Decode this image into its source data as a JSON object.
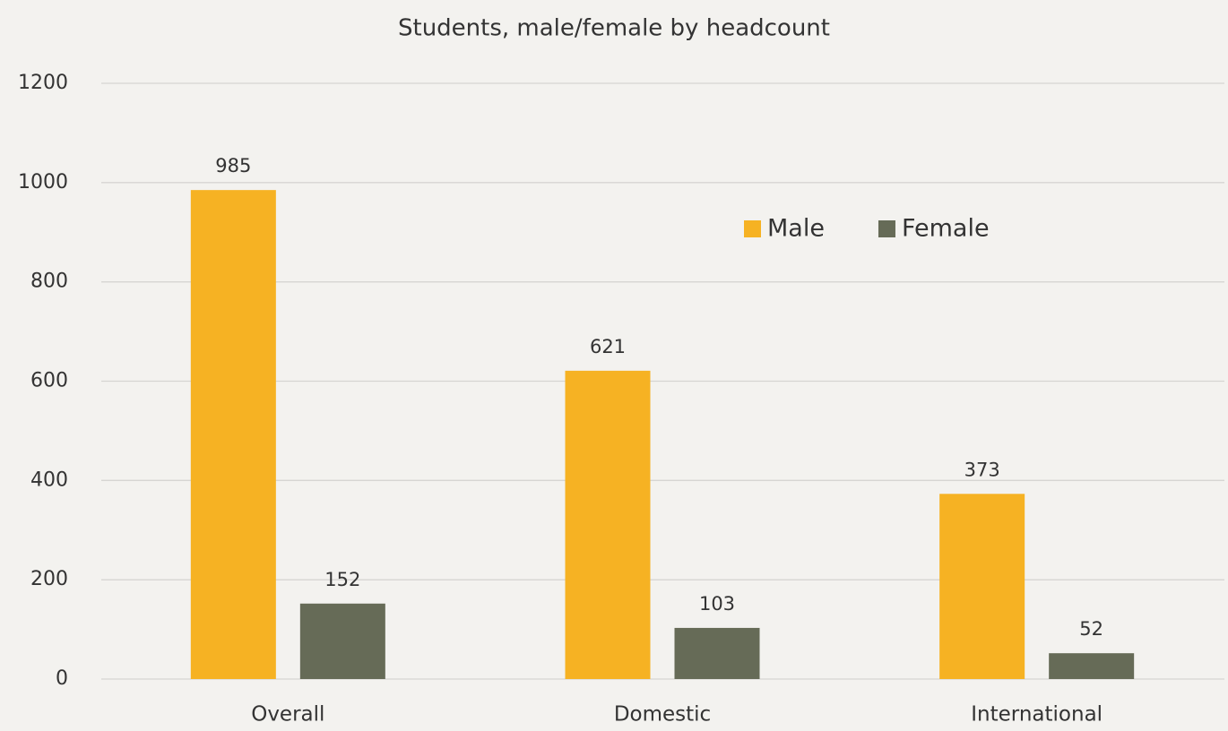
{
  "chart_data": {
    "type": "bar",
    "title": "Students, male/female by headcount",
    "categories": [
      "Overall",
      "Domestic",
      "International"
    ],
    "series": [
      {
        "name": "Male",
        "color": "#f6b223",
        "values": [
          985,
          621,
          373
        ]
      },
      {
        "name": "Female",
        "color": "#666b57",
        "values": [
          152,
          103,
          52
        ]
      }
    ],
    "ylim": [
      0,
      1200
    ],
    "yticks": [
      0,
      200,
      400,
      600,
      800,
      1000,
      1200
    ],
    "grid": true,
    "legend": "top-right"
  }
}
